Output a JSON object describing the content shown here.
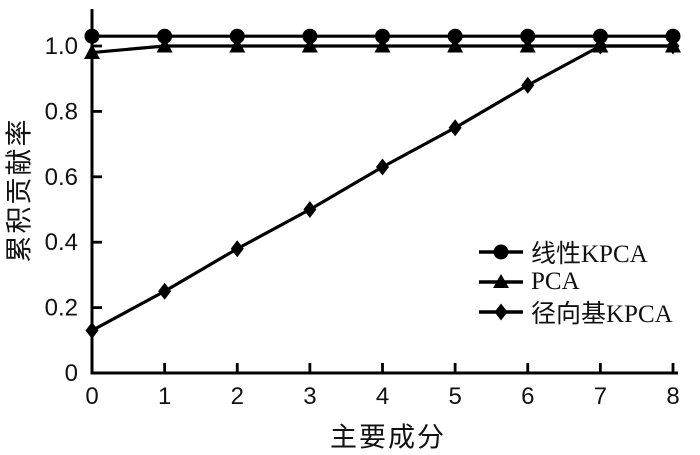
{
  "colors": {
    "line": "#000000",
    "text": "#111111",
    "background": "#ffffff"
  },
  "chart_data": {
    "type": "line",
    "title": "",
    "xlabel": "主要成分",
    "ylabel": "累积贡献率",
    "x": [
      0,
      1,
      2,
      3,
      4,
      5,
      6,
      7,
      8
    ],
    "x_tick_labels": [
      "0",
      "1",
      "2",
      "3",
      "4",
      "5",
      "6",
      "7",
      "8"
    ],
    "y_ticks": [
      0,
      0.2,
      0.4,
      0.6,
      0.8,
      1.0
    ],
    "y_tick_labels": [
      "0",
      "0.2",
      "0.4",
      "0.6",
      "0.8",
      "1.0"
    ],
    "xlim": [
      0,
      8
    ],
    "ylim": [
      0,
      1.12
    ],
    "grid": false,
    "legend_position": "inside-lower-right",
    "series": [
      {
        "name": "线性KPCA",
        "marker": "circle",
        "color": "#000000",
        "values": [
          1.03,
          1.03,
          1.03,
          1.03,
          1.03,
          1.03,
          1.03,
          1.03,
          1.03
        ]
      },
      {
        "name": "PCA",
        "marker": "triangle",
        "color": "#000000",
        "values": [
          0.98,
          1.0,
          1.0,
          1.0,
          1.0,
          1.0,
          1.0,
          1.0,
          1.0
        ]
      },
      {
        "name": "径向基KPCA",
        "marker": "diamond",
        "color": "#000000",
        "values": [
          0.13,
          0.25,
          0.38,
          0.5,
          0.63,
          0.75,
          0.88,
          1.0,
          1.0
        ]
      }
    ]
  }
}
